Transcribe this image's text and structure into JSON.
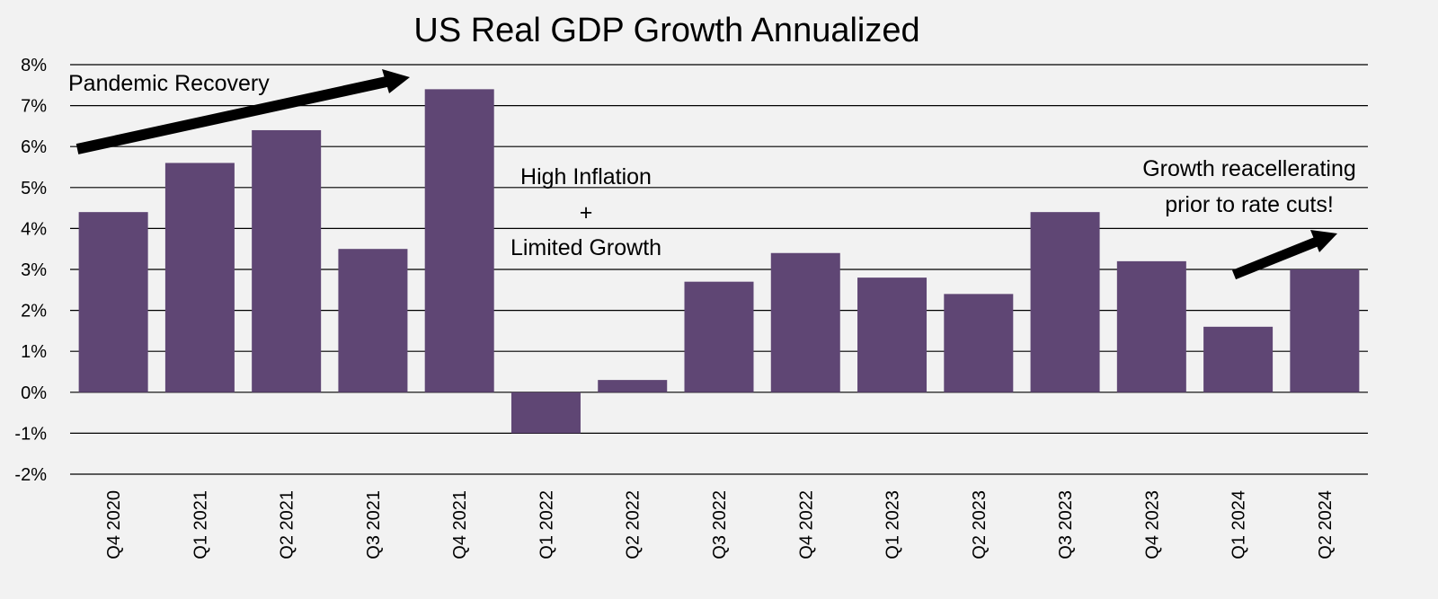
{
  "chart_data": {
    "type": "bar",
    "title": "US Real GDP Growth Annualized",
    "xlabel": "",
    "ylabel": "",
    "categories": [
      "Q4 2020",
      "Q1 2021",
      "Q2 2021",
      "Q3 2021",
      "Q4 2021",
      "Q1 2022",
      "Q2 2022",
      "Q3 2022",
      "Q4 2022",
      "Q1 2023",
      "Q2 2023",
      "Q3 2023",
      "Q4 2023",
      "Q1 2024",
      "Q2 2024"
    ],
    "values": [
      4.4,
      5.6,
      6.4,
      3.5,
      7.4,
      -1.0,
      0.3,
      2.7,
      3.4,
      2.8,
      2.4,
      4.4,
      3.2,
      1.6,
      3.0
    ],
    "ylim": [
      -2,
      8
    ],
    "y_ticks": [
      8,
      7,
      6,
      5,
      4,
      3,
      2,
      1,
      0,
      -1,
      -2
    ],
    "y_tick_labels": [
      "8%",
      "7%",
      "6%",
      "5%",
      "4%",
      "3%",
      "2%",
      "1%",
      "0%",
      "-1%",
      "-2%"
    ],
    "bar_color": "#5f4674",
    "grid": true,
    "legend": "none",
    "annotations": {
      "pandemic": "Pandemic Recovery",
      "inflation_line1": "High Inflation",
      "inflation_plus": "+",
      "inflation_line2": "Limited Growth",
      "reaccel_line1": "Growth reacellerating",
      "reaccel_line2": "prior to rate cuts!"
    }
  }
}
